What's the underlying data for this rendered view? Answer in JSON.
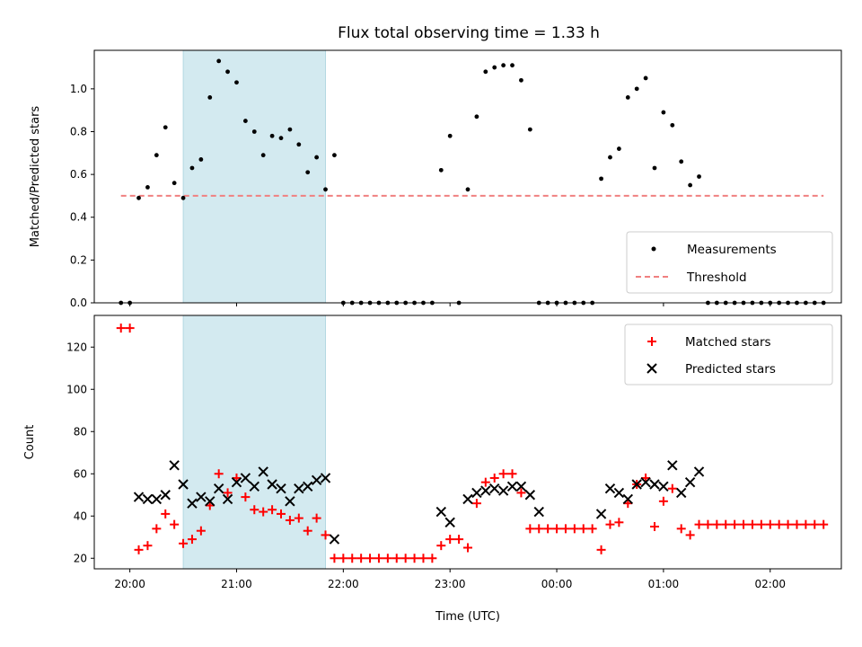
{
  "chart_data": [
    {
      "type": "scatter",
      "title": "Flux total observing time = 1.33 h",
      "ylabel": "Matched/Predicted stars",
      "ylim": [
        0,
        1.18
      ],
      "yticks": [
        0.0,
        0.2,
        0.4,
        0.6,
        0.8,
        1.0
      ],
      "ytick_labels": [
        "0.0",
        "0.2",
        "0.4",
        "0.6",
        "0.8",
        "1.0"
      ],
      "xlim": [
        "19:40",
        "02:40"
      ],
      "shaded_span": [
        "20:30",
        "21:50"
      ],
      "shade_color": "#d3eaf0",
      "legend": {
        "position": "lower right",
        "entries": [
          "Measurements",
          "Threshold"
        ]
      },
      "series": [
        {
          "name": "Measurements",
          "marker": "dot",
          "color": "#000000",
          "points": [
            [
              "19:55",
              0
            ],
            [
              "20:00",
              0
            ],
            [
              "20:05",
              0.49
            ],
            [
              "20:10",
              0.54
            ],
            [
              "20:15",
              0.69
            ],
            [
              "20:20",
              0.82
            ],
            [
              "20:25",
              0.56
            ],
            [
              "20:30",
              0.49
            ],
            [
              "20:35",
              0.63
            ],
            [
              "20:40",
              0.67
            ],
            [
              "20:45",
              0.96
            ],
            [
              "20:50",
              1.13
            ],
            [
              "20:55",
              1.08
            ],
            [
              "21:00",
              1.03
            ],
            [
              "21:05",
              0.85
            ],
            [
              "21:10",
              0.8
            ],
            [
              "21:15",
              0.69
            ],
            [
              "21:20",
              0.78
            ],
            [
              "21:25",
              0.77
            ],
            [
              "21:30",
              0.81
            ],
            [
              "21:35",
              0.74
            ],
            [
              "21:40",
              0.61
            ],
            [
              "21:45",
              0.68
            ],
            [
              "21:50",
              0.53
            ],
            [
              "21:55",
              0.69
            ],
            [
              "22:00",
              0
            ],
            [
              "22:05",
              0
            ],
            [
              "22:10",
              0
            ],
            [
              "22:15",
              0
            ],
            [
              "22:20",
              0
            ],
            [
              "22:25",
              0
            ],
            [
              "22:30",
              0
            ],
            [
              "22:35",
              0
            ],
            [
              "22:40",
              0
            ],
            [
              "22:45",
              0
            ],
            [
              "22:50",
              0
            ],
            [
              "22:55",
              0.62
            ],
            [
              "23:00",
              0.78
            ],
            [
              "23:05",
              0
            ],
            [
              "23:10",
              0.53
            ],
            [
              "23:15",
              0.87
            ],
            [
              "23:20",
              1.08
            ],
            [
              "23:25",
              1.1
            ],
            [
              "23:30",
              1.11
            ],
            [
              "23:35",
              1.11
            ],
            [
              "23:40",
              1.04
            ],
            [
              "23:45",
              0.81
            ],
            [
              "23:50",
              0
            ],
            [
              "23:55",
              0
            ],
            [
              "00:00",
              0
            ],
            [
              "00:05",
              0
            ],
            [
              "00:10",
              0
            ],
            [
              "00:15",
              0
            ],
            [
              "00:20",
              0
            ],
            [
              "00:25",
              0.58
            ],
            [
              "00:30",
              0.68
            ],
            [
              "00:35",
              0.72
            ],
            [
              "00:40",
              0.96
            ],
            [
              "00:45",
              1.0
            ],
            [
              "00:50",
              1.05
            ],
            [
              "00:55",
              0.63
            ],
            [
              "01:00",
              0.89
            ],
            [
              "01:05",
              0.83
            ],
            [
              "01:10",
              0.66
            ],
            [
              "01:15",
              0.55
            ],
            [
              "01:20",
              0.59
            ],
            [
              "01:25",
              0
            ],
            [
              "01:30",
              0
            ],
            [
              "01:35",
              0
            ],
            [
              "01:40",
              0
            ],
            [
              "01:45",
              0
            ],
            [
              "01:50",
              0
            ],
            [
              "01:55",
              0
            ],
            [
              "02:00",
              0
            ],
            [
              "02:05",
              0
            ],
            [
              "02:10",
              0
            ],
            [
              "02:15",
              0
            ],
            [
              "02:20",
              0
            ],
            [
              "02:25",
              0
            ],
            [
              "02:30",
              0
            ]
          ]
        },
        {
          "name": "Threshold",
          "type": "line",
          "style": "dashed",
          "color": "#f08080",
          "x": [
            "19:55",
            "02:30"
          ],
          "y": [
            0.5,
            0.5
          ]
        }
      ]
    },
    {
      "type": "scatter",
      "xlabel": "Time (UTC)",
      "ylabel": "Count",
      "ylim": [
        15,
        135
      ],
      "yticks": [
        20,
        40,
        60,
        80,
        100,
        120
      ],
      "ytick_labels": [
        "20",
        "40",
        "60",
        "80",
        "100",
        "120"
      ],
      "xlim": [
        "19:40",
        "02:40"
      ],
      "xticks": [
        "20:00",
        "21:00",
        "22:00",
        "23:00",
        "00:00",
        "01:00",
        "02:00"
      ],
      "xtick_labels": [
        "20:00",
        "21:00",
        "22:00",
        "23:00",
        "00:00",
        "01:00",
        "02:00"
      ],
      "shaded_span": [
        "20:30",
        "21:50"
      ],
      "shade_color": "#d3eaf0",
      "legend": {
        "position": "upper right",
        "entries": [
          "Matched stars",
          "Predicted stars"
        ]
      },
      "series": [
        {
          "name": "Matched stars",
          "marker": "plus",
          "color": "#ff0000",
          "points": [
            [
              "19:55",
              129
            ],
            [
              "20:00",
              129
            ],
            [
              "20:05",
              24
            ],
            [
              "20:10",
              26
            ],
            [
              "20:15",
              34
            ],
            [
              "20:20",
              41
            ],
            [
              "20:25",
              36
            ],
            [
              "20:30",
              27
            ],
            [
              "20:35",
              29
            ],
            [
              "20:40",
              33
            ],
            [
              "20:45",
              45
            ],
            [
              "20:50",
              60
            ],
            [
              "20:55",
              51
            ],
            [
              "21:00",
              58
            ],
            [
              "21:05",
              49
            ],
            [
              "21:10",
              43
            ],
            [
              "21:15",
              42
            ],
            [
              "21:20",
              43
            ],
            [
              "21:25",
              41
            ],
            [
              "21:30",
              38
            ],
            [
              "21:35",
              39
            ],
            [
              "21:40",
              33
            ],
            [
              "21:45",
              39
            ],
            [
              "21:50",
              31
            ],
            [
              "21:55",
              20
            ],
            [
              "22:00",
              20
            ],
            [
              "22:05",
              20
            ],
            [
              "22:10",
              20
            ],
            [
              "22:15",
              20
            ],
            [
              "22:20",
              20
            ],
            [
              "22:25",
              20
            ],
            [
              "22:30",
              20
            ],
            [
              "22:35",
              20
            ],
            [
              "22:40",
              20
            ],
            [
              "22:45",
              20
            ],
            [
              "22:50",
              20
            ],
            [
              "22:55",
              26
            ],
            [
              "23:00",
              29
            ],
            [
              "23:05",
              29
            ],
            [
              "23:10",
              25
            ],
            [
              "23:15",
              46
            ],
            [
              "23:20",
              56
            ],
            [
              "23:25",
              58
            ],
            [
              "23:30",
              60
            ],
            [
              "23:35",
              60
            ],
            [
              "23:40",
              51
            ],
            [
              "23:45",
              34
            ],
            [
              "23:50",
              34
            ],
            [
              "23:55",
              34
            ],
            [
              "00:00",
              34
            ],
            [
              "00:05",
              34
            ],
            [
              "00:10",
              34
            ],
            [
              "00:15",
              34
            ],
            [
              "00:20",
              34
            ],
            [
              "00:25",
              24
            ],
            [
              "00:30",
              36
            ],
            [
              "00:35",
              37
            ],
            [
              "00:40",
              46
            ],
            [
              "00:45",
              55
            ],
            [
              "00:50",
              58
            ],
            [
              "00:55",
              35
            ],
            [
              "01:00",
              47
            ],
            [
              "01:05",
              53
            ],
            [
              "01:10",
              34
            ],
            [
              "01:15",
              31
            ],
            [
              "01:20",
              36
            ],
            [
              "01:25",
              36
            ],
            [
              "01:30",
              36
            ],
            [
              "01:35",
              36
            ],
            [
              "01:40",
              36
            ],
            [
              "01:45",
              36
            ],
            [
              "01:50",
              36
            ],
            [
              "01:55",
              36
            ],
            [
              "02:00",
              36
            ],
            [
              "02:05",
              36
            ],
            [
              "02:10",
              36
            ],
            [
              "02:15",
              36
            ],
            [
              "02:20",
              36
            ],
            [
              "02:25",
              36
            ],
            [
              "02:30",
              36
            ]
          ]
        },
        {
          "name": "Predicted stars",
          "marker": "x",
          "color": "#000000",
          "points": [
            [
              "20:05",
              49
            ],
            [
              "20:10",
              48
            ],
            [
              "20:15",
              48
            ],
            [
              "20:20",
              50
            ],
            [
              "20:25",
              64
            ],
            [
              "20:30",
              55
            ],
            [
              "20:35",
              46
            ],
            [
              "20:40",
              49
            ],
            [
              "20:45",
              47
            ],
            [
              "20:50",
              53
            ],
            [
              "20:55",
              48
            ],
            [
              "21:00",
              56
            ],
            [
              "21:05",
              58
            ],
            [
              "21:10",
              54
            ],
            [
              "21:15",
              61
            ],
            [
              "21:20",
              55
            ],
            [
              "21:25",
              53
            ],
            [
              "21:30",
              47
            ],
            [
              "21:35",
              53
            ],
            [
              "21:40",
              54
            ],
            [
              "21:45",
              57
            ],
            [
              "21:50",
              58
            ],
            [
              "21:55",
              29
            ],
            [
              "22:55",
              42
            ],
            [
              "23:00",
              37
            ],
            [
              "23:10",
              48
            ],
            [
              "23:15",
              51
            ],
            [
              "23:20",
              52
            ],
            [
              "23:25",
              53
            ],
            [
              "23:30",
              52
            ],
            [
              "23:35",
              54
            ],
            [
              "23:40",
              54
            ],
            [
              "23:45",
              50
            ],
            [
              "23:50",
              42
            ],
            [
              "00:25",
              41
            ],
            [
              "00:30",
              53
            ],
            [
              "00:35",
              51
            ],
            [
              "00:40",
              48
            ],
            [
              "00:45",
              55
            ],
            [
              "00:50",
              56
            ],
            [
              "00:55",
              55
            ],
            [
              "01:00",
              54
            ],
            [
              "01:05",
              64
            ],
            [
              "01:10",
              51
            ],
            [
              "01:15",
              56
            ],
            [
              "01:20",
              61
            ]
          ]
        }
      ]
    }
  ]
}
